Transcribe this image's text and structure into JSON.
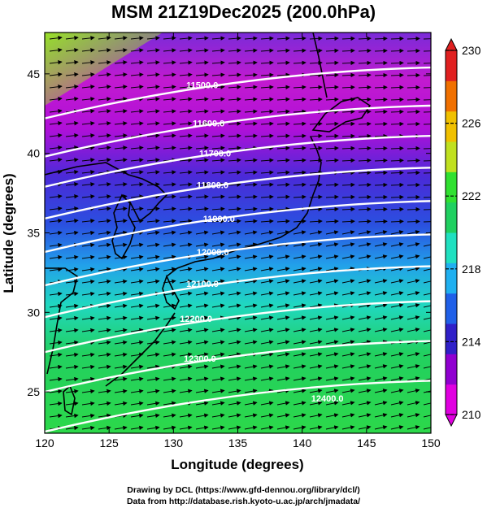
{
  "title": "MSM 21Z19Dec2025 (200.0hPa)",
  "footer": {
    "line1": "Drawing by DCL (https://www.gfd-dennou.org/library/dcl/)",
    "line2": "Data from http://database.rish.kyoto-u.ac.jp/arch/jmadata/"
  },
  "map": {
    "x_axis_title": "Longitude (degrees)",
    "y_axis_title": "Latitude  (degrees)",
    "x_range": [
      120,
      150
    ],
    "y_range": [
      22.4,
      47.6
    ],
    "x_ticks": [
      "120",
      "125",
      "130",
      "135",
      "140",
      "145",
      "150"
    ],
    "y_ticks": [
      "25",
      "30",
      "35",
      "40",
      "45"
    ],
    "y_tick_values": [
      25,
      30,
      35,
      40,
      45
    ],
    "contours": [
      {
        "label": "11500.0",
        "lat": 44.0,
        "label_lon": 131.0
      },
      {
        "label": "11600.0",
        "lat": 41.6,
        "label_lon": 131.5
      },
      {
        "label": "11700.0",
        "lat": 39.7,
        "label_lon": 132.0
      },
      {
        "label": "11800.0",
        "lat": 37.7,
        "label_lon": 131.8
      },
      {
        "label": "11900.0",
        "lat": 35.6,
        "label_lon": 132.3
      },
      {
        "label": "12000.0",
        "lat": 33.5,
        "label_lon": 131.8
      },
      {
        "label": "12100.0",
        "lat": 31.5,
        "label_lon": 131.0
      },
      {
        "label": "12200.0",
        "lat": 29.3,
        "label_lon": 130.5
      },
      {
        "label": "12300.0",
        "lat": 26.8,
        "label_lon": 130.8
      },
      {
        "label": "12400.0",
        "lat": 24.3,
        "label_lon": 140.7
      }
    ]
  },
  "colorbar": {
    "ticks": [
      "230",
      "226",
      "222",
      "218",
      "214",
      "210"
    ],
    "tick_values": [
      230,
      226,
      222,
      218,
      214,
      210
    ],
    "min": 210,
    "max": 230,
    "colors": [
      "#e000e0",
      "#9000d0",
      "#3020c8",
      "#2060e8",
      "#20b0f0",
      "#20e0c0",
      "#20d060",
      "#30e030",
      "#c0e020",
      "#f0c000",
      "#f07000",
      "#e02020"
    ]
  }
}
